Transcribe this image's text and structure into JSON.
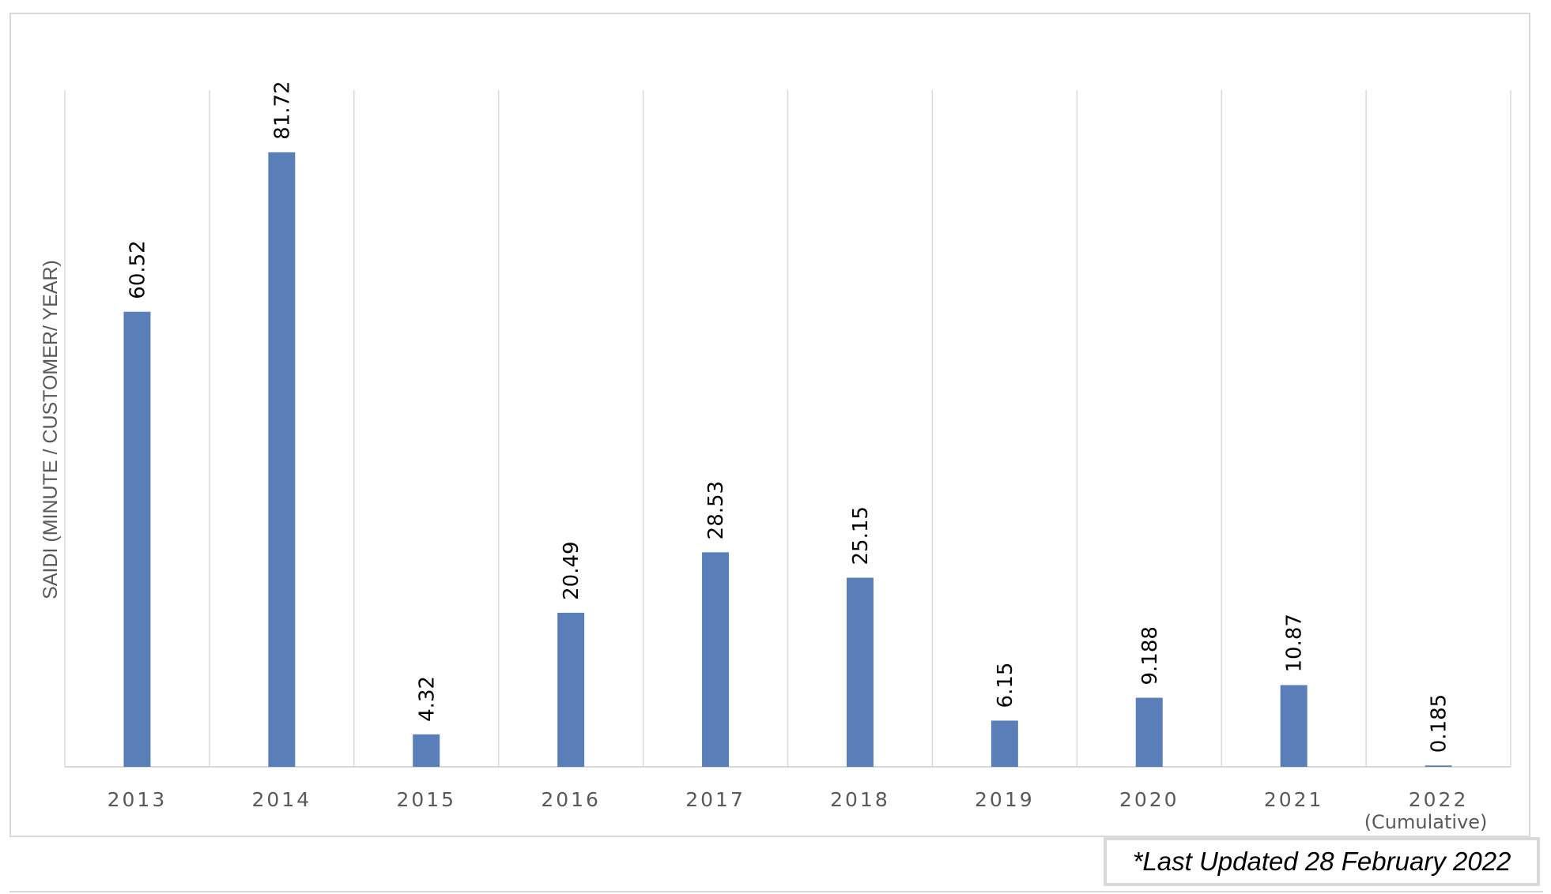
{
  "chart_data": {
    "type": "bar",
    "categories": [
      "2013",
      "2014",
      "2015",
      "2016",
      "2017",
      "2018",
      "2019",
      "2020",
      "2021",
      "2022"
    ],
    "category_sublabels": [
      "",
      "",
      "",
      "",
      "",
      "",
      "",
      "",
      "",
      "(Cumulative)"
    ],
    "values": [
      60.52,
      81.72,
      4.32,
      20.49,
      28.53,
      25.15,
      6.15,
      9.188,
      10.87,
      0.185
    ],
    "value_labels": [
      "60.52",
      "81.72",
      "4.32",
      "20.49",
      "28.53",
      "25.15",
      "6.15",
      "9.188",
      "10.87",
      "0.185"
    ],
    "title": "",
    "xlabel": "",
    "ylabel": "SAIDI (MINUTE / CUSTOMER/ YEAR)",
    "ylim": [
      0,
      90
    ],
    "grid": "vertical",
    "legend": "none",
    "bar_color": "#5a7fb8",
    "grid_color": "#d9d9d9"
  },
  "footnote": "*Last Updated 28 February 2022"
}
